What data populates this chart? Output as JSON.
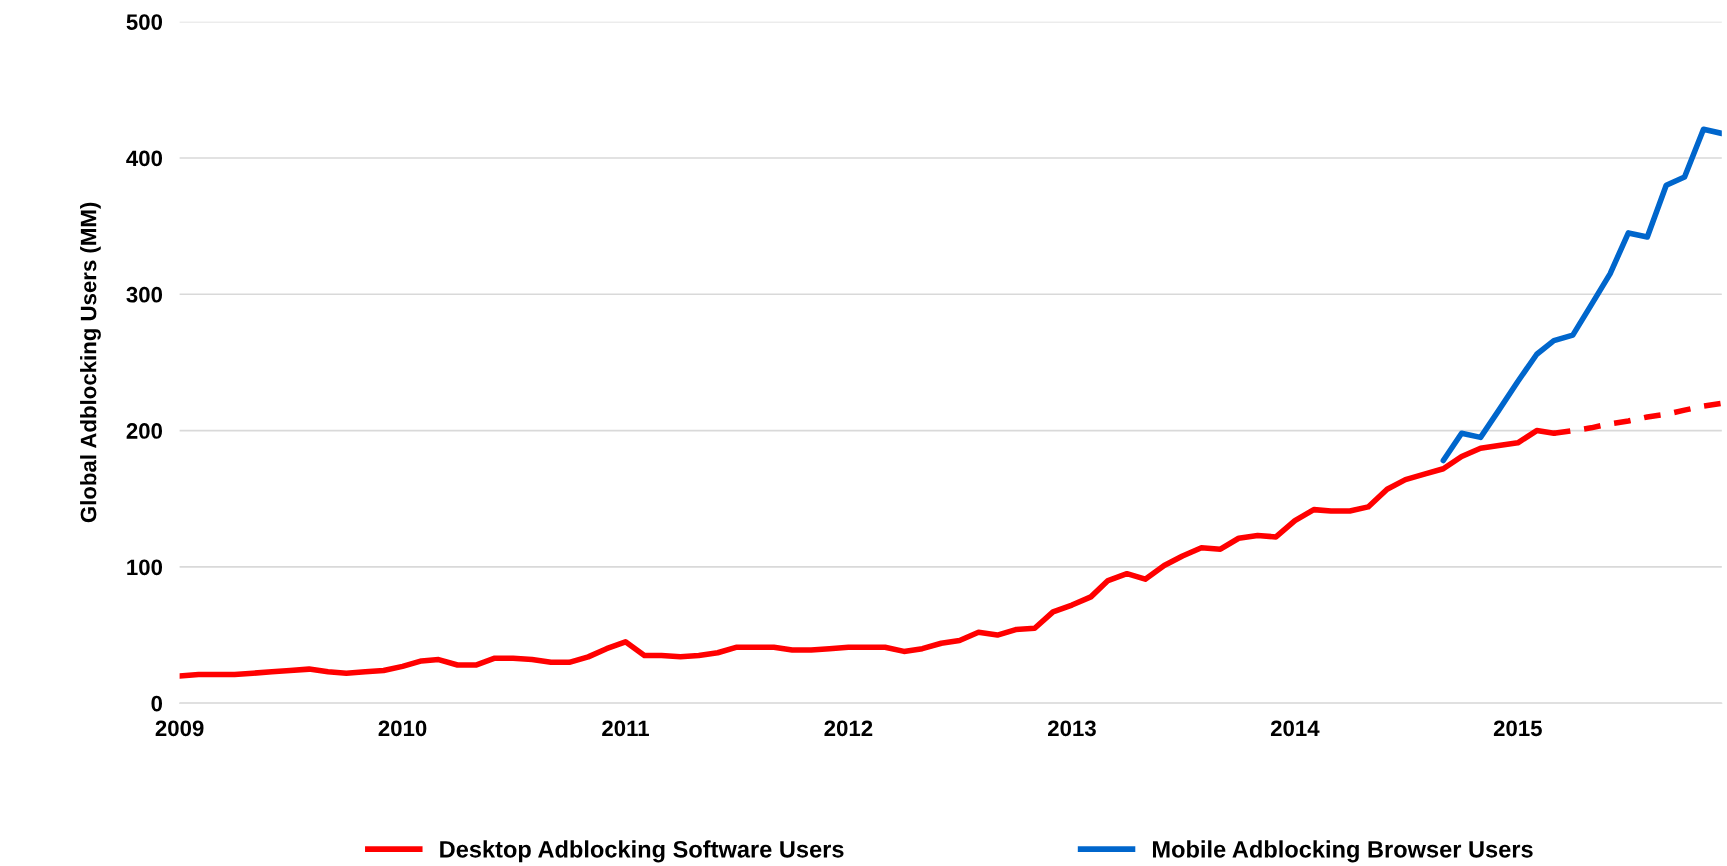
{
  "chart_data": {
    "type": "line",
    "ylabel": "Global Adblocking Users (MM)",
    "xlim": [
      "2009-01",
      "2015-12"
    ],
    "xticks": [
      "2009",
      "2010",
      "2011",
      "2012",
      "2013",
      "2014",
      "2015"
    ],
    "ylim": [
      0,
      500
    ],
    "yticks": [
      0,
      100,
      200,
      300,
      400,
      500
    ],
    "grid": "y",
    "legend": "bottom",
    "marker": "none",
    "series": [
      {
        "name": "Desktop Adblocking Software Users",
        "color": "#ff0000",
        "line_style": "solid",
        "x": [
          "2009-01",
          "2009-02",
          "2009-03",
          "2009-04",
          "2009-05",
          "2009-06",
          "2009-07",
          "2009-08",
          "2009-09",
          "2009-10",
          "2009-11",
          "2009-12",
          "2010-01",
          "2010-02",
          "2010-03",
          "2010-04",
          "2010-05",
          "2010-06",
          "2010-07",
          "2010-08",
          "2010-09",
          "2010-10",
          "2010-11",
          "2010-12",
          "2011-01",
          "2011-02",
          "2011-03",
          "2011-04",
          "2011-05",
          "2011-06",
          "2011-07",
          "2011-08",
          "2011-09",
          "2011-10",
          "2011-11",
          "2011-12",
          "2012-01",
          "2012-02",
          "2012-03",
          "2012-04",
          "2012-05",
          "2012-06",
          "2012-07",
          "2012-08",
          "2012-09",
          "2012-10",
          "2012-11",
          "2012-12",
          "2013-01",
          "2013-02",
          "2013-03",
          "2013-04",
          "2013-05",
          "2013-06",
          "2013-07",
          "2013-08",
          "2013-09",
          "2013-10",
          "2013-11",
          "2013-12",
          "2014-01",
          "2014-02",
          "2014-03",
          "2014-04",
          "2014-05",
          "2014-06",
          "2014-07",
          "2014-08",
          "2014-09",
          "2014-10",
          "2014-11",
          "2014-12",
          "2015-01",
          "2015-02",
          "2015-03"
        ],
        "values": [
          20,
          21,
          21,
          21,
          22,
          23,
          24,
          25,
          23,
          22,
          23,
          24,
          27,
          31,
          32,
          28,
          28,
          33,
          33,
          32,
          30,
          30,
          34,
          40,
          45,
          35,
          35,
          34,
          35,
          37,
          41,
          41,
          41,
          39,
          39,
          40,
          41,
          41,
          41,
          38,
          40,
          44,
          46,
          52,
          50,
          54,
          55,
          67,
          72,
          78,
          90,
          95,
          91,
          101,
          108,
          114,
          113,
          121,
          123,
          122,
          134,
          142,
          141,
          141,
          144,
          157,
          164,
          168,
          172,
          181,
          187,
          189,
          191,
          200,
          198
        ]
      },
      {
        "color": "#ff0000",
        "line_style": "dashed",
        "x": [
          "2015-03",
          "2015-04",
          "2015-05",
          "2015-06",
          "2015-07",
          "2015-08",
          "2015-09",
          "2015-10",
          "2015-11",
          "2015-12"
        ],
        "values": [
          198,
          200,
          202,
          205,
          207,
          210,
          212,
          215,
          218,
          220
        ]
      },
      {
        "name": "Mobile Adblocking Browser Users",
        "color": "#0066cc",
        "line_style": "solid",
        "x": [
          "2014-09",
          "2014-10",
          "2014-11",
          "2014-12",
          "2015-01",
          "2015-02",
          "2015-03",
          "2015-04",
          "2015-05",
          "2015-06",
          "2015-07",
          "2015-08",
          "2015-09",
          "2015-10",
          "2015-11",
          "2015-12"
        ],
        "values": [
          178,
          198,
          195,
          215,
          236,
          256,
          266,
          270,
          292,
          315,
          345,
          342,
          380,
          386,
          421,
          418
        ]
      }
    ]
  }
}
